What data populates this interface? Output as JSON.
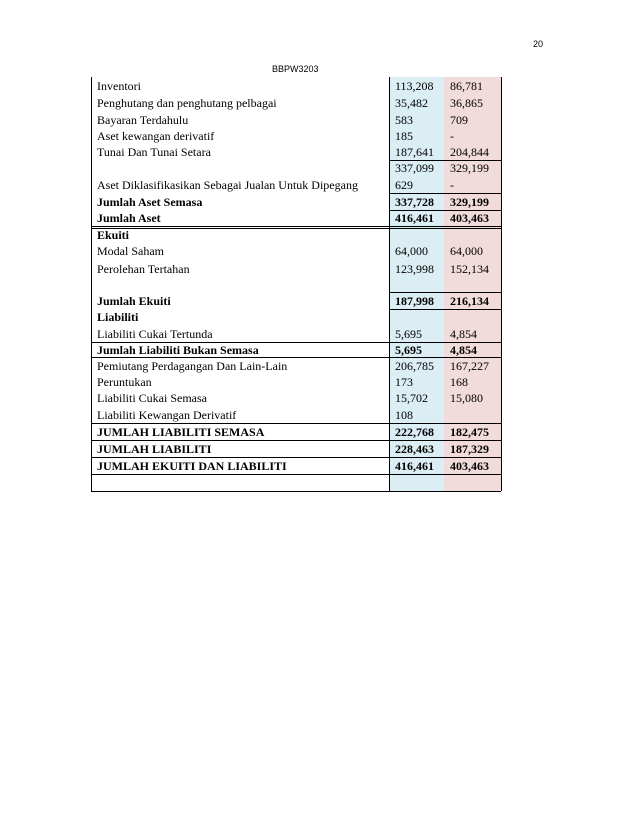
{
  "header": {
    "page_number": "20",
    "course_code": "BBPW3203"
  },
  "table": {
    "rows": [
      {
        "label": "Inventori",
        "v1": "113,208",
        "v2": "86,781"
      },
      {
        "label": "Penghutang dan  penghutang pelbagai",
        "v1": "35,482",
        "v2": "36,865"
      },
      {
        "label": "Bayaran Terdahulu",
        "v1": "583",
        "v2": "709"
      },
      {
        "label": "Aset kewangan derivatif",
        "v1": "185",
        "v2": "-"
      },
      {
        "label": "Tunai Dan Tunai Setara",
        "v1": "187,641",
        "v2": "204,844"
      },
      {
        "v1": "337,099",
        "v2": "329,199"
      },
      {
        "label": "Aset Diklasifikasikan Sebagai  Jualan Untuk  Dipegang",
        "v1": "629",
        "v2": "-"
      },
      {
        "label": "Jumlah Aset Semasa",
        "v1": "337,728",
        "v2": "329,199",
        "bold": true
      },
      {
        "label": "Jumlah Aset",
        "v1": "416,461",
        "v2": "403,463",
        "bold": true
      },
      {
        "label": "Ekuiti",
        "bold": true
      },
      {
        "label": "Modal Saham",
        "v1": "64,000",
        "v2": "64,000"
      },
      {
        "label": "Perolehan Tertahan",
        "v1": "123,998",
        "v2": "152,134"
      },
      {},
      {
        "label": "Jumlah Ekuiti",
        "v1": "187,998",
        "v2": "216,134",
        "bold": true
      },
      {
        "label": "Liabiliti",
        "bold": true
      },
      {
        "label": "Liabiliti Cukai Tertunda",
        "v1": "5,695",
        "v2": "4,854"
      },
      {
        "label": "Jumlah Liabiliti Bukan Semasa",
        "v1": "5,695",
        "v2": "4,854",
        "bold": true
      },
      {
        "label": "Pemiutang Perdagangan Dan Lain-Lain",
        "v1": "206,785",
        "v2": "167,227"
      },
      {
        "label": "Peruntukan",
        "v1": "173",
        "v2": "168"
      },
      {
        "label": "Liabiliti Cukai Semasa",
        "v1": "15,702",
        "v2": "15,080"
      },
      {
        "label": "Liabiliti Kewangan Derivatif",
        "v1": "108"
      },
      {
        "label": "JUMLAH LIABILITI SEMASA",
        "v1": "222,768",
        "v2": "182,475",
        "bold": true
      },
      {
        "label": "JUMLAH LIABILITI",
        "v1": "228,463",
        "v2": "187,329",
        "bold": true
      },
      {
        "label": "JUMLAH EKUITI DAN LIABILITI",
        "v1": "416,461",
        "v2": "403,463",
        "bold": true
      },
      {}
    ]
  }
}
